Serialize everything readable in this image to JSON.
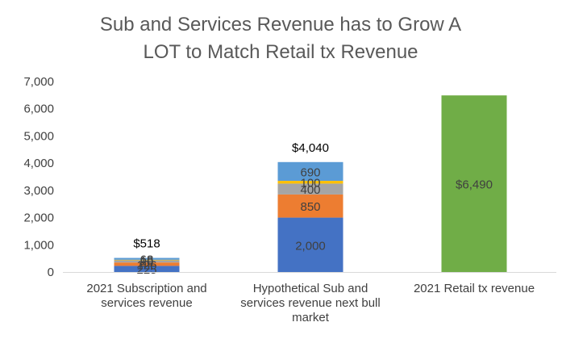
{
  "chart_data": {
    "type": "bar",
    "stacked": true,
    "title_lines": [
      "Sub and Services Revenue has to Grow A",
      "LOT to Match Retail tx Revenue"
    ],
    "xlabel": "",
    "ylabel": "",
    "ylim": [
      0,
      7000
    ],
    "yticks": [
      0,
      1000,
      2000,
      3000,
      4000,
      5000,
      6000,
      7000
    ],
    "ytick_labels": [
      "0",
      "1,000",
      "2,000",
      "3,000",
      "4,000",
      "5,000",
      "6,000",
      "7,000"
    ],
    "grid": false,
    "legend": "none",
    "categories": [
      {
        "lines": [
          "2021 Subscription and",
          "services revenue"
        ]
      },
      {
        "lines": [
          "Hypothetical Sub and",
          "services revenue next bull",
          "market"
        ]
      },
      {
        "lines": [
          "2021 Retail tx revenue"
        ]
      }
    ],
    "stacks": [
      {
        "total_label": "$518",
        "segments": [
          {
            "value": 225,
            "label": "225",
            "color": "#4472c4"
          },
          {
            "value": 126,
            "label": "126",
            "color": "#ed7d31"
          },
          {
            "value": 80,
            "label": "80",
            "color": "#a5a5a5"
          },
          {
            "value": 19,
            "label": "19",
            "color": "#ffc000"
          },
          {
            "value": 68,
            "label": "68",
            "color": "#5b9bd5"
          }
        ]
      },
      {
        "total_label": "$4,040",
        "segments": [
          {
            "value": 2000,
            "label": "2,000",
            "color": "#4472c4"
          },
          {
            "value": 850,
            "label": "850",
            "color": "#ed7d31"
          },
          {
            "value": 400,
            "label": "400",
            "color": "#a5a5a5"
          },
          {
            "value": 100,
            "label": "100",
            "color": "#ffc000"
          },
          {
            "value": 690,
            "label": "690",
            "color": "#5b9bd5"
          }
        ]
      },
      {
        "total_label": "",
        "segments": [
          {
            "value": 6490,
            "label": "$6,490",
            "color": "#70ad47"
          }
        ]
      }
    ]
  }
}
